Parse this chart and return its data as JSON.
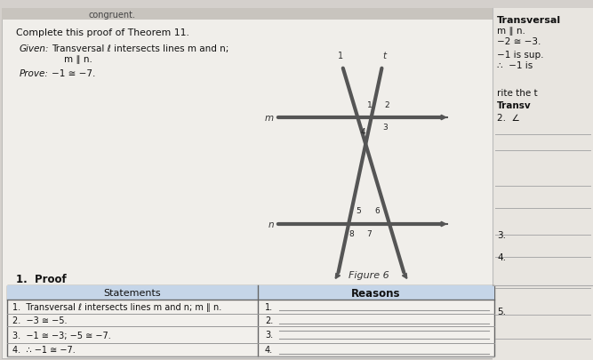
{
  "bg_color": "#d4d0cc",
  "page_bg": "#f0eeea",
  "right_bg": "#e8e5e0",
  "title_text": "Complete this proof of Theorem 11.",
  "given_label": "Given:",
  "given_body": "Transversal ℓ intersects lines m and n;",
  "given_body2": "m ∥ n.",
  "prove_label": "Prove:",
  "prove_body": "−1 ≅ −7.",
  "proof_label": "1.  Proof",
  "statements_header": "Statements",
  "reasons_header": "Reasons",
  "stmt1": "1.  Transversal ℓ intersects lines m and n; m ∥ n.",
  "stmt2": "2.  −3 ≅ −5.",
  "stmt3": "3.  −1 ≅ −3; −5 ≅ −7.",
  "stmt4": "4.  ∴ −1 ≅ −7.",
  "figure_label": "Figure 6",
  "table_header_bg": "#c5d5e8",
  "top_band_text": "congruent.",
  "rc1": "Transversal",
  "rc2": "m ∥ n.",
  "rc3": "−2 ≅ −3.",
  "rc4": "−1 is sup.",
  "rc5": "∴  −1 is",
  "rc6": "rite the t",
  "rc7": "Transv",
  "rc8": "2.  ∠",
  "rc9": "3.",
  "rc10": "4.",
  "rc11": "5."
}
